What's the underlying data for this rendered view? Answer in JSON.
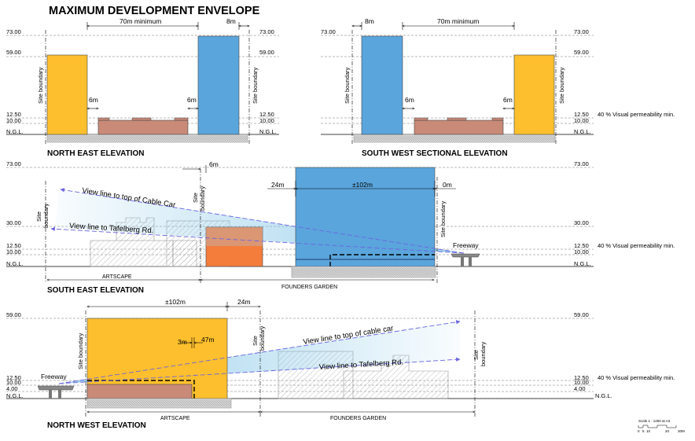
{
  "title": "MAXIMUM DEVELOPMENT ENVELOPE",
  "levels": {
    "l73": "73.00",
    "l59": "59.00",
    "l30": "30.00",
    "l1250": "12.50",
    "l1000": "10.00",
    "l400": "4.00",
    "ngl": "N.G.L."
  },
  "labels": {
    "site_boundary": "Site boundary",
    "site": "Site",
    "boundary": "boundary",
    "visual_permeability": "40 % Visual permeability min.",
    "freeway": "Freeway",
    "artscape": "ARTSCAPE",
    "founders_garden": "FOUNDERS GARDEN"
  },
  "dimensions": {
    "d70_min": "70m minimum",
    "d8m": "8m",
    "d6m": "6m",
    "d24m": "24m",
    "d102m": "±102m",
    "d0m": "0m",
    "d3m": "3m",
    "d47m": "47m"
  },
  "elevations": {
    "north_east": "NORTH EAST ELEVATION",
    "south_west": "SOUTH WEST SECTIONAL ELEVATION",
    "south_east": "SOUTH EAST ELEVATION",
    "north_west": "NORTH WEST ELEVATION"
  },
  "view_lines": {
    "cable_car_se": "View line to top of Cable Car",
    "tafelberg_se": "View line to Tafelberg Rd.",
    "cable_car_nw": "View line to top of cable car",
    "tafelberg_nw": "View line to Tafelberg Rd."
  },
  "scale": {
    "text": "Scale 1 : 1250 at A3",
    "ticks": [
      "0",
      "5",
      "10",
      "20",
      "30M"
    ]
  },
  "colors": {
    "yellow": "#fdbf2d",
    "blue": "#5aa5dc",
    "orange": "#f47d3c",
    "brick": "#c98a78",
    "view": "#6d64e0",
    "ground": "#d2d2d2"
  }
}
